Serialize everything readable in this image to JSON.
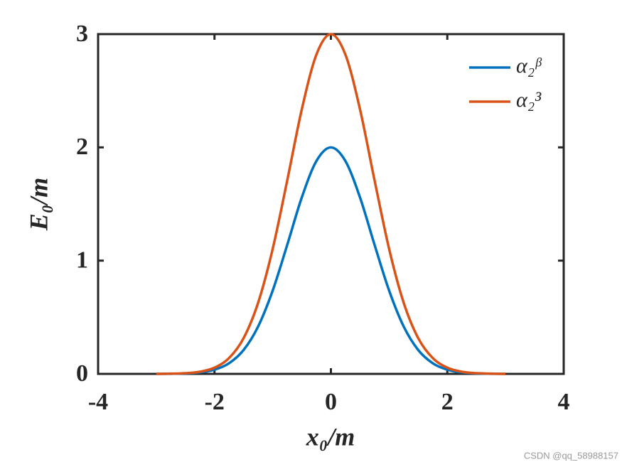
{
  "chart_data": {
    "type": "line",
    "x": [
      -3,
      -2.75,
      -2.5,
      -2.25,
      -2,
      -1.75,
      -1.5,
      -1.25,
      -1,
      -0.75,
      -0.5,
      -0.25,
      0,
      0.25,
      0.5,
      0.75,
      1,
      1.25,
      1.5,
      1.75,
      2,
      2.25,
      2.5,
      2.75,
      3
    ],
    "series": [
      {
        "name": "α₂ᵝ",
        "color": "#0072BD",
        "values": [
          0,
          0.001,
          0.004,
          0.013,
          0.037,
          0.094,
          0.211,
          0.419,
          0.736,
          1.14,
          1.558,
          1.879,
          2,
          1.879,
          1.558,
          1.14,
          0.736,
          0.419,
          0.211,
          0.094,
          0.037,
          0.013,
          0.004,
          0.001,
          0
        ]
      },
      {
        "name": "α₂³",
        "color": "#D95319",
        "values": [
          0,
          0.002,
          0.006,
          0.019,
          0.055,
          0.14,
          0.316,
          0.629,
          1.104,
          1.709,
          2.336,
          2.818,
          3,
          2.818,
          2.336,
          1.709,
          1.104,
          0.629,
          0.316,
          0.14,
          0.055,
          0.019,
          0.006,
          0.002,
          0
        ]
      }
    ],
    "xlabel": "x₀/m",
    "ylabel": "E₀/m",
    "xlim": [
      -4,
      4
    ],
    "xticks": [
      -4,
      -2,
      0,
      2,
      4
    ],
    "ylim": [
      0,
      3
    ],
    "yticks": [
      0,
      1,
      2,
      3
    ],
    "legend": "upper right",
    "watermark": "CSDN @qq_58988157"
  }
}
